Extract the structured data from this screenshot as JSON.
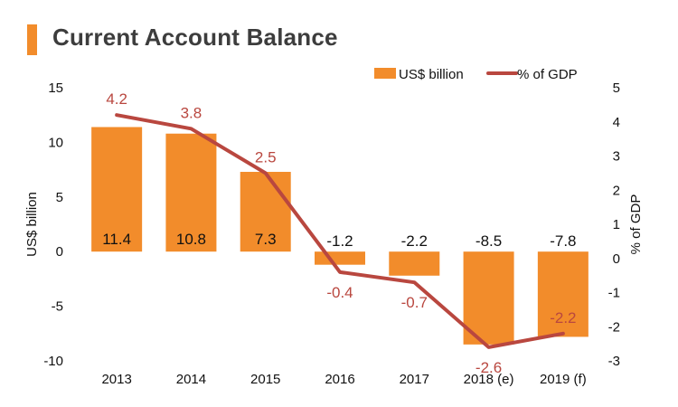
{
  "title": "Current Account Balance",
  "colors": {
    "bar": "#F28C2B",
    "line": "#B9473F",
    "title_bar": "#F28C2B",
    "text": "#111111"
  },
  "chart_data": {
    "type": "bar",
    "title": "Current Account Balance",
    "categories": [
      "2013",
      "2014",
      "2015",
      "2016",
      "2017",
      "2018 (e)",
      "2019 (f)"
    ],
    "series": [
      {
        "name": "US$ billion",
        "type": "bar",
        "axis": "left",
        "values": [
          11.4,
          10.8,
          7.3,
          -1.2,
          -2.2,
          -8.5,
          -7.8
        ]
      },
      {
        "name": "% of GDP",
        "type": "line",
        "axis": "right",
        "values": [
          4.2,
          3.8,
          2.5,
          -0.4,
          -0.7,
          -2.6,
          -2.2
        ]
      }
    ],
    "ylabel": "US$ billion",
    "ylabel_right": "% of GDP",
    "ylim": [
      -10,
      15
    ],
    "y_ticks": [
      "15",
      "10",
      "5",
      "0",
      "-5",
      "-10"
    ],
    "ylim_right": [
      -3,
      5
    ],
    "y_right_ticks": [
      "5",
      "4",
      "3",
      "2",
      "1",
      "0",
      "-1",
      "-2",
      "-3"
    ],
    "legend_position": "top-right",
    "grid": false
  }
}
